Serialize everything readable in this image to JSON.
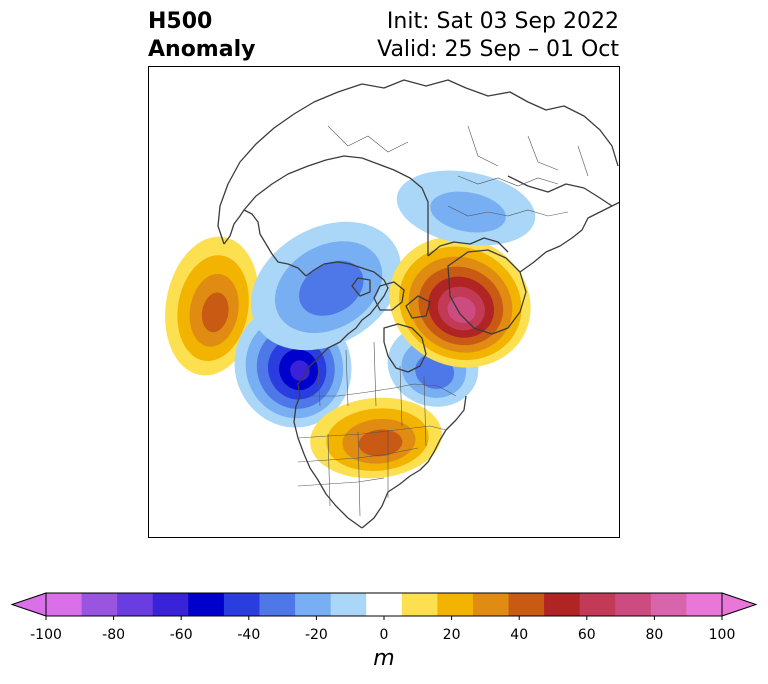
{
  "header": {
    "title_line1": "H500",
    "title_line2": "Anomaly",
    "init": "Init: Sat 03 Sep 2022",
    "valid": "Valid: 25 Sep – 01 Oct"
  },
  "colorbar": {
    "unit": "m",
    "ticks": [
      "-100",
      "-80",
      "-60",
      "-40",
      "-20",
      "0",
      "20",
      "40",
      "60",
      "80",
      "100"
    ],
    "levels": [
      -100,
      -90,
      -80,
      -70,
      -60,
      -50,
      -40,
      -30,
      -20,
      -10,
      10,
      20,
      30,
      40,
      50,
      60,
      70,
      80,
      90,
      100
    ],
    "colors": [
      "#d970e8",
      "#9a55e0",
      "#6a3de0",
      "#3a22d8",
      "#0000cc",
      "#2a3ee0",
      "#4e78e8",
      "#78aef2",
      "#aad6f8",
      "#ffffff",
      "#fce050",
      "#f2b400",
      "#e08c12",
      "#c85a14",
      "#b02424",
      "#c23a56",
      "#cc4c80",
      "#d865ac",
      "#e877d8"
    ],
    "under_color": "#d970e8",
    "over_color": "#e877d8"
  },
  "anomalies": [
    {
      "name": "north-pacific-positive",
      "peak": 42,
      "sign": "positive"
    },
    {
      "name": "alaska-gulf-negative",
      "peak": -60,
      "sign": "negative"
    },
    {
      "name": "northern-canada-negative",
      "peak": -35,
      "sign": "negative"
    },
    {
      "name": "hudson-bay-negative",
      "peak": -35,
      "sign": "negative"
    },
    {
      "name": "central-us-positive",
      "peak": 45,
      "sign": "positive"
    },
    {
      "name": "scandinavia-positive",
      "peak": 75,
      "sign": "positive"
    },
    {
      "name": "siberia-negative",
      "peak": -22,
      "sign": "negative"
    }
  ]
}
